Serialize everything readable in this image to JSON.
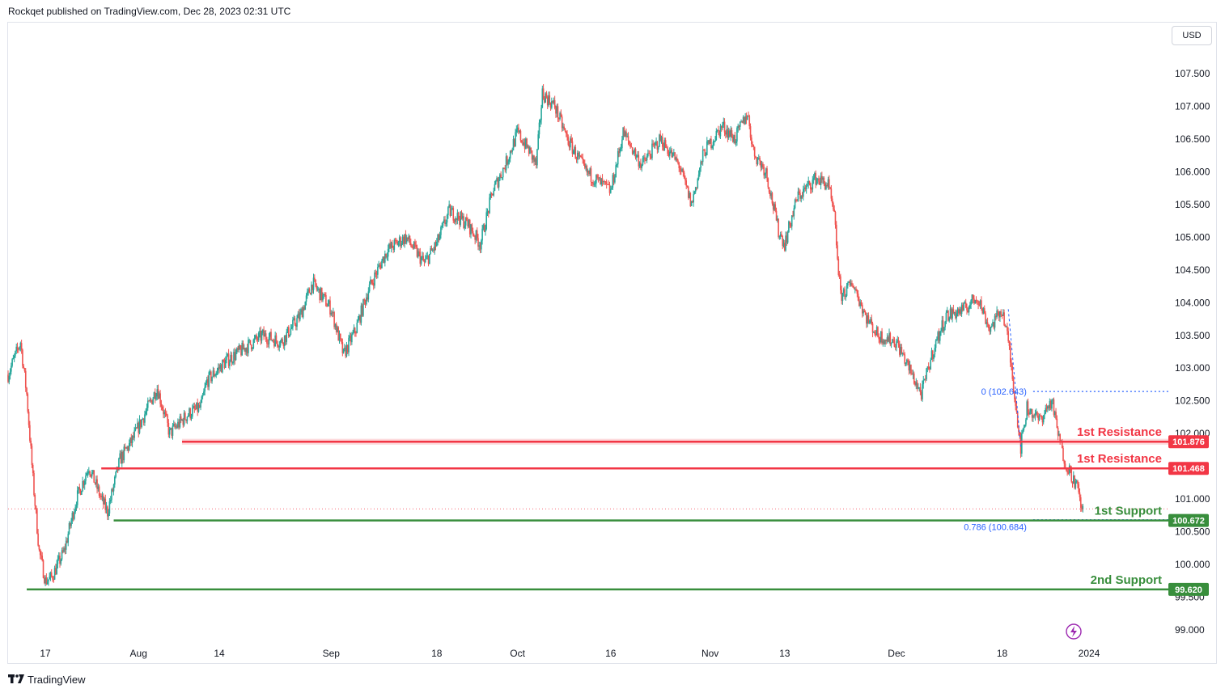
{
  "header": {
    "publisher_text": "Rockqet published on TradingView.com, Dec 28, 2023 02:31 UTC"
  },
  "currency_button": {
    "label": "USD"
  },
  "footer": {
    "brand": "TradingView",
    "logo_icon": "tradingview-logo-icon"
  },
  "colors": {
    "up": "#26a69a",
    "down": "#ef5350",
    "resistance": "#f23645",
    "support": "#388e3c",
    "fib": "#2962ff",
    "last_price_line": "#f23645",
    "lightning": "#9c27b0"
  },
  "chart_data": {
    "type": "candlestick",
    "symbol_currency": "USD",
    "ylim": [
      98.7,
      107.9
    ],
    "y_ticks": [
      "107.500",
      "107.000",
      "106.500",
      "106.000",
      "105.500",
      "105.000",
      "104.500",
      "104.000",
      "103.500",
      "103.000",
      "102.500",
      "102.000",
      "101.000",
      "100.500",
      "100.000",
      "99.500",
      "99.000"
    ],
    "x_ticks": [
      "17",
      "Aug",
      "14",
      "Sep",
      "18",
      "Oct",
      "16",
      "Nov",
      "13",
      "Dec",
      "18",
      "2024"
    ],
    "x_range": [
      "2023-07-11",
      "2024-01-02"
    ],
    "date_anchors": [
      {
        "date": "2023-07-17",
        "label": "17"
      },
      {
        "date": "2023-08-01",
        "label": "Aug"
      },
      {
        "date": "2023-08-14",
        "label": "14"
      },
      {
        "date": "2023-09-01",
        "label": "Sep"
      },
      {
        "date": "2023-09-18",
        "label": "18"
      },
      {
        "date": "2023-10-01",
        "label": "Oct"
      },
      {
        "date": "2023-10-16",
        "label": "16"
      },
      {
        "date": "2023-11-01",
        "label": "Nov"
      },
      {
        "date": "2023-11-13",
        "label": "13"
      },
      {
        "date": "2023-12-01",
        "label": "Dec"
      },
      {
        "date": "2023-12-18",
        "label": "18"
      },
      {
        "date": "2024-01-01",
        "label": "2024"
      }
    ],
    "price_path": [
      [
        "2023-07-11",
        102.9
      ],
      [
        "2023-07-13",
        103.4
      ],
      [
        "2023-07-14",
        102.6
      ],
      [
        "2023-07-15",
        101.3
      ],
      [
        "2023-07-16",
        100.2
      ],
      [
        "2023-07-17",
        99.75
      ],
      [
        "2023-07-18",
        99.8
      ],
      [
        "2023-07-20",
        100.2
      ],
      [
        "2023-07-22",
        101.0
      ],
      [
        "2023-07-24",
        101.5
      ],
      [
        "2023-07-26",
        101.0
      ],
      [
        "2023-07-27",
        100.8
      ],
      [
        "2023-07-29",
        101.6
      ],
      [
        "2023-07-31",
        101.9
      ],
      [
        "2023-08-04",
        102.7
      ],
      [
        "2023-08-06",
        102.0
      ],
      [
        "2023-08-09",
        102.3
      ],
      [
        "2023-08-11",
        102.4
      ],
      [
        "2023-08-12",
        102.8
      ],
      [
        "2023-08-15",
        103.1
      ],
      [
        "2023-08-18",
        103.3
      ],
      [
        "2023-08-21",
        103.5
      ],
      [
        "2023-08-24",
        103.4
      ],
      [
        "2023-08-27",
        103.8
      ],
      [
        "2023-08-29",
        104.3
      ],
      [
        "2023-09-01",
        103.9
      ],
      [
        "2023-09-03",
        103.2
      ],
      [
        "2023-09-05",
        103.6
      ],
      [
        "2023-09-07",
        104.2
      ],
      [
        "2023-09-10",
        104.8
      ],
      [
        "2023-09-13",
        105.0
      ],
      [
        "2023-09-16",
        104.6
      ],
      [
        "2023-09-18",
        104.9
      ],
      [
        "2023-09-20",
        105.4
      ],
      [
        "2023-09-23",
        105.2
      ],
      [
        "2023-09-25",
        104.9
      ],
      [
        "2023-09-27",
        105.7
      ],
      [
        "2023-09-29",
        106.1
      ],
      [
        "2023-10-01",
        106.6
      ],
      [
        "2023-10-03",
        106.3
      ],
      [
        "2023-10-04",
        106.1
      ],
      [
        "2023-10-05",
        107.2
      ],
      [
        "2023-10-07",
        107.0
      ],
      [
        "2023-10-09",
        106.5
      ],
      [
        "2023-10-12",
        106.0
      ],
      [
        "2023-10-16",
        105.7
      ],
      [
        "2023-10-18",
        106.6
      ],
      [
        "2023-10-21",
        106.1
      ],
      [
        "2023-10-24",
        106.5
      ],
      [
        "2023-10-27",
        106.1
      ],
      [
        "2023-10-29",
        105.5
      ],
      [
        "2023-10-31",
        106.3
      ],
      [
        "2023-11-03",
        106.7
      ],
      [
        "2023-11-05",
        106.5
      ],
      [
        "2023-11-07",
        106.9
      ],
      [
        "2023-11-08",
        106.3
      ],
      [
        "2023-11-10",
        106.0
      ],
      [
        "2023-11-12",
        105.1
      ],
      [
        "2023-11-13",
        104.9
      ],
      [
        "2023-11-15",
        105.6
      ],
      [
        "2023-11-18",
        105.9
      ],
      [
        "2023-11-20",
        105.8
      ],
      [
        "2023-11-21",
        105.3
      ],
      [
        "2023-11-22",
        104.1
      ],
      [
        "2023-11-24",
        104.3
      ],
      [
        "2023-11-26",
        103.8
      ],
      [
        "2023-11-28",
        103.5
      ],
      [
        "2023-12-01",
        103.4
      ],
      [
        "2023-12-03",
        103.0
      ],
      [
        "2023-12-05",
        102.6
      ],
      [
        "2023-12-07",
        103.3
      ],
      [
        "2023-12-09",
        103.8
      ],
      [
        "2023-12-12",
        103.9
      ],
      [
        "2023-12-14",
        104.1
      ],
      [
        "2023-12-16",
        103.6
      ],
      [
        "2023-12-18",
        103.9
      ],
      [
        "2023-12-19",
        103.4
      ],
      [
        "2023-12-20",
        102.6
      ],
      [
        "2023-12-21",
        101.8
      ],
      [
        "2023-12-22",
        102.4
      ],
      [
        "2023-12-24",
        102.2
      ],
      [
        "2023-12-26",
        102.5
      ],
      [
        "2023-12-27",
        102.0
      ],
      [
        "2023-12-28",
        101.6
      ],
      [
        "2023-12-29",
        101.4
      ],
      [
        "2023-12-30",
        101.2
      ],
      [
        "2023-12-31",
        100.8
      ]
    ],
    "levels": [
      {
        "id": "resistance-1a",
        "price": 101.876,
        "label": "1st Resistance",
        "badge": "101.876",
        "kind": "resistance",
        "start": "2023-08-08",
        "zone": [
          101.83,
          101.92
        ]
      },
      {
        "id": "resistance-1b",
        "price": 101.468,
        "label": "1st Resistance",
        "badge": "101.468",
        "kind": "resistance",
        "start": "2023-07-26"
      },
      {
        "id": "support-1",
        "price": 100.672,
        "label": "1st Support",
        "badge": "100.672",
        "kind": "support",
        "start": "2023-07-28"
      },
      {
        "id": "support-2",
        "price": 99.62,
        "label": "2nd Support",
        "badge": "99.620",
        "kind": "support",
        "start": "2023-07-14"
      }
    ],
    "fib": {
      "level_0": {
        "price": 102.643,
        "label": "0 (102.643)"
      },
      "level_0786": {
        "price": 100.684,
        "label": "0.786 (100.684)"
      },
      "start": "2023-12-23"
    },
    "last_price": 100.85
  }
}
